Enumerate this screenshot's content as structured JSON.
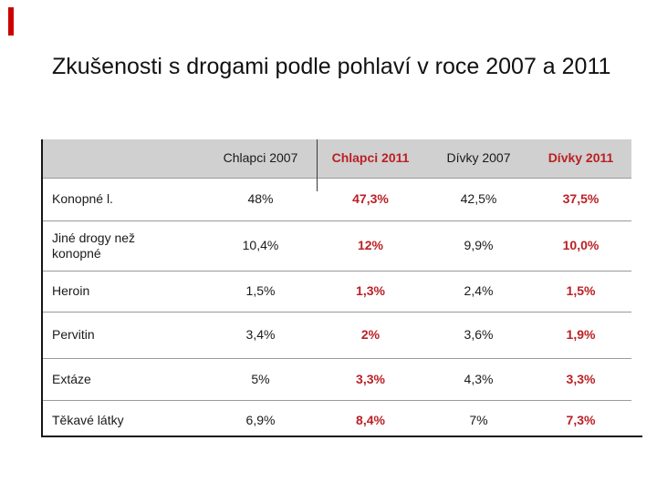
{
  "slide": {
    "title": "Zkušenosti s drogami podle pohlaví v roce 2007 a 2011"
  },
  "theme": {
    "accent_bar_color": "#cc0000",
    "red_text_color": "#bb2025",
    "header_bg_color": "#d0d0d0",
    "separator_color": "#9a9a9a",
    "border_color": "#151515"
  },
  "table": {
    "columns": [
      {
        "label": ""
      },
      {
        "label": "Chlapci 2007"
      },
      {
        "label": "Chlapci 2011"
      },
      {
        "label": "Dívky 2007"
      },
      {
        "label": "Dívky 2011"
      }
    ],
    "rows": [
      {
        "label": "Konopné l.",
        "values": [
          "48%",
          "47,3%",
          "42,5%",
          "37,5%"
        ]
      },
      {
        "label": "Jiné drogy než konopné",
        "values": [
          "10,4%",
          "12%",
          "9,9%",
          "10,0%"
        ]
      },
      {
        "label": "Heroin",
        "values": [
          "1,5%",
          "1,3%",
          "2,4%",
          "1,5%"
        ]
      },
      {
        "label": "Pervitin",
        "values": [
          "3,4%",
          "2%",
          "3,6%",
          "1,9%"
        ]
      },
      {
        "label": "Extáze",
        "values": [
          "5%",
          "3,3%",
          "4,3%",
          "3,3%"
        ]
      },
      {
        "label": "Těkavé látky",
        "values": [
          "6,9%",
          "8,4%",
          "7%",
          "7,3%"
        ]
      }
    ]
  },
  "chart_data": {
    "type": "table",
    "title": "Zkušenosti s drogami podle pohlaví v roce 2007 a 2011",
    "categories": [
      "Konopné l.",
      "Jiné drogy než konopné",
      "Heroin",
      "Pervitin",
      "Extáze",
      "Těkavé látky"
    ],
    "series": [
      {
        "name": "Chlapci 2007",
        "values": [
          48,
          10.4,
          1.5,
          3.4,
          5,
          6.9
        ]
      },
      {
        "name": "Chlapci 2011",
        "values": [
          47.3,
          12,
          1.3,
          2,
          3.3,
          8.4
        ]
      },
      {
        "name": "Dívky 2007",
        "values": [
          42.5,
          9.9,
          2.4,
          3.6,
          4.3,
          7
        ]
      },
      {
        "name": "Dívky 2011",
        "values": [
          37.5,
          10.0,
          1.5,
          1.9,
          3.3,
          7.3
        ]
      }
    ],
    "unit": "%"
  }
}
